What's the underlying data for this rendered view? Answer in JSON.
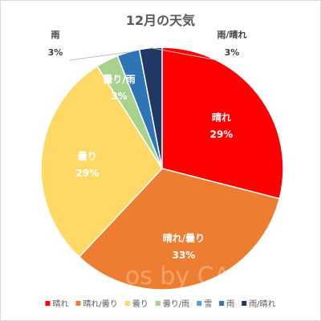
{
  "chart_data": {
    "type": "pie",
    "title": "12月の天気",
    "categories": [
      "晴れ",
      "晴れ/曇り",
      "曇り",
      "曇り/雨",
      "雪",
      "雨",
      "雨/晴れ"
    ],
    "values": [
      29,
      33,
      29,
      3,
      0,
      3,
      3
    ],
    "percent_labels": [
      "29%",
      "33%",
      "29%",
      "3%",
      "",
      "3%",
      "3%"
    ],
    "colors": [
      "#ff0000",
      "#ed7d31",
      "#ffd966",
      "#a9d18e",
      "#5b9bd5",
      "#2e75b6",
      "#1f3864"
    ],
    "legend_position": "bottom",
    "start_angle": "12 o'clock, clockwise"
  },
  "watermark": "os by CAS"
}
